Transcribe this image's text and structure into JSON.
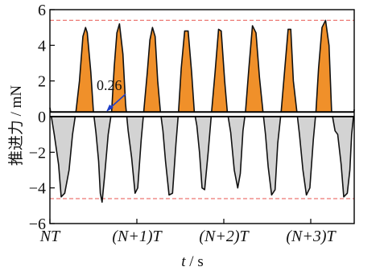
{
  "chart_data": {
    "type": "area",
    "title": "",
    "xlabel": "t / s",
    "ylabel": "推进力 / mN",
    "ylim": [
      -6,
      6
    ],
    "yticks": [
      -6,
      -4,
      -2,
      0,
      2,
      4,
      6
    ],
    "xlim": [
      0,
      3.5
    ],
    "xticks": [
      {
        "value": 0,
        "label": "NT"
      },
      {
        "value": 1,
        "label": "(N+1)T"
      },
      {
        "value": 2,
        "label": "(N+2)T"
      },
      {
        "value": 3,
        "label": "(N+3)T"
      }
    ],
    "annotation": {
      "text": "0.26",
      "value": 0.26
    },
    "offset_value": 0.26,
    "reference_lines": [
      5.4,
      -4.6
    ],
    "colors": {
      "positive_fill": "#F0902A",
      "negative_fill": "#D3D3D3",
      "line": "#111111",
      "reference": "#E8554F",
      "arrow": "#1F3FC8"
    },
    "series": [
      {
        "x": [
          0.0,
          0.05,
          0.1,
          0.13,
          0.17,
          0.22,
          0.26,
          0.3,
          0.34,
          0.38,
          0.41,
          0.43,
          0.47,
          0.5,
          0.53,
          0.56,
          0.58,
          0.6,
          0.63,
          0.67,
          0.71,
          0.74,
          0.77,
          0.8,
          0.84,
          0.87,
          0.9,
          0.94,
          0.98,
          1.01,
          1.05,
          1.08,
          1.12,
          1.15,
          1.18,
          1.21,
          1.24,
          1.27,
          1.3,
          1.33,
          1.37,
          1.41,
          1.45,
          1.48,
          1.51,
          1.55,
          1.59,
          1.63,
          1.66,
          1.69,
          1.72,
          1.75,
          1.78,
          1.82,
          1.86,
          1.9,
          1.94,
          1.97,
          2.01,
          2.04,
          2.08,
          2.12,
          2.16,
          2.19,
          2.22,
          2.25,
          2.29,
          2.33,
          2.37,
          2.41,
          2.45,
          2.48,
          2.51,
          2.55,
          2.59,
          2.62,
          2.66,
          2.7,
          2.74,
          2.77,
          2.8,
          2.84,
          2.87,
          2.91,
          2.95,
          2.99,
          3.03,
          3.06,
          3.09,
          3.13,
          3.17,
          3.21,
          3.24,
          3.28,
          3.31,
          3.35,
          3.38,
          3.42,
          3.45,
          3.47,
          3.5
        ],
        "y": [
          0.5,
          -1.0,
          -2.7,
          -4.5,
          -4.3,
          -3.0,
          -1.0,
          0.3,
          2.0,
          4.5,
          5.0,
          4.7,
          2.5,
          0.3,
          -0.9,
          -2.5,
          -4.3,
          -4.8,
          -3.3,
          -1.0,
          0.3,
          2.8,
          4.7,
          5.2,
          3.5,
          0.7,
          -0.8,
          -2.3,
          -4.3,
          -4.0,
          -1.3,
          0.3,
          2.5,
          4.3,
          5.0,
          4.5,
          2.0,
          0.3,
          -0.8,
          -2.5,
          -4.4,
          -4.3,
          -1.5,
          0.3,
          2.7,
          4.8,
          4.8,
          2.5,
          0.3,
          -0.5,
          -2.0,
          -4.0,
          -4.1,
          -2.0,
          0.3,
          2.5,
          4.9,
          4.8,
          2.0,
          0.3,
          -0.9,
          -3.0,
          -4.0,
          -3.2,
          -0.8,
          0.3,
          2.8,
          5.1,
          4.7,
          2.2,
          0.3,
          -1.0,
          -2.8,
          -4.4,
          -4.1,
          -1.5,
          0.3,
          2.6,
          4.9,
          4.9,
          2.0,
          0.3,
          -1.0,
          -3.0,
          -4.4,
          -4.0,
          -1.3,
          0.3,
          2.7,
          5.0,
          5.4,
          4.0,
          0.3,
          -0.8,
          -1.0,
          -2.7,
          -4.5,
          -4.3,
          -3.0,
          -1.0,
          0.4
        ]
      }
    ]
  }
}
